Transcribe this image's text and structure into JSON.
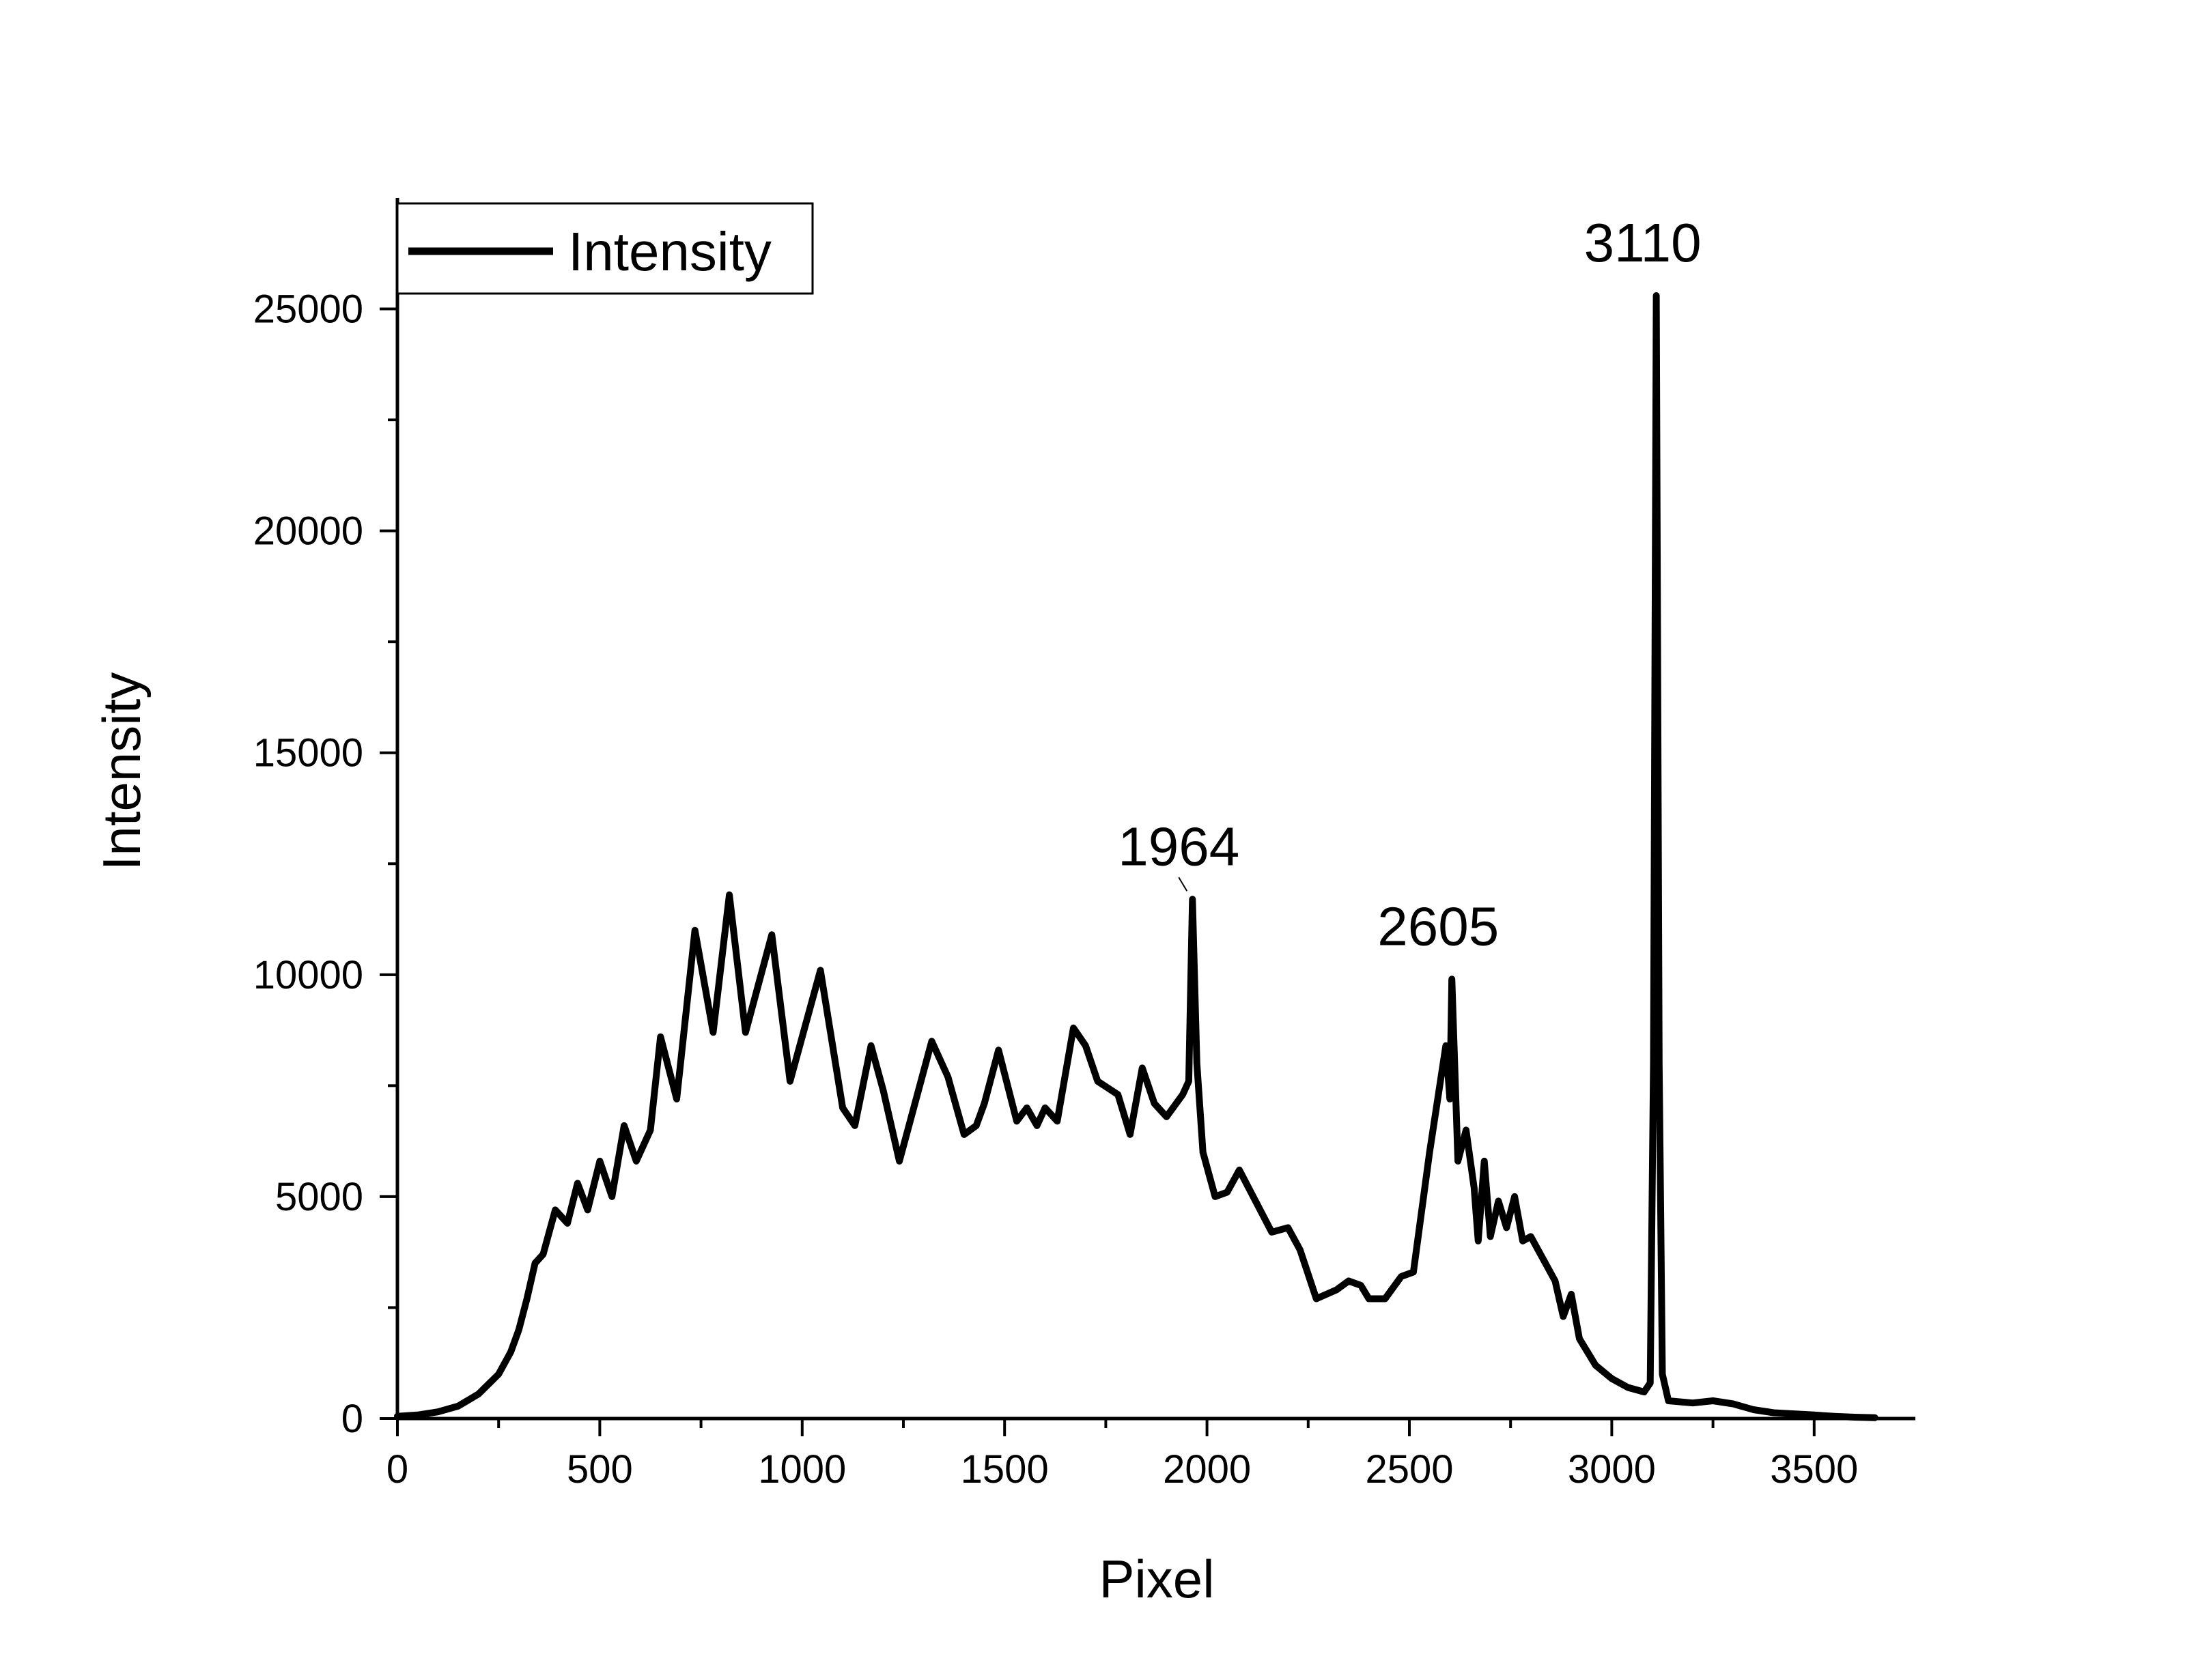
{
  "chart_data": {
    "type": "line",
    "title": "",
    "xlabel": "Pixel",
    "ylabel": "Intensity",
    "xlim": [
      0,
      3750
    ],
    "ylim": [
      0,
      27500
    ],
    "x_ticks": [
      0,
      500,
      1000,
      1500,
      2000,
      2500,
      3000,
      3500
    ],
    "y_ticks": [
      0,
      5000,
      10000,
      15000,
      20000,
      25000
    ],
    "x_tick_labels": [
      "0",
      "500",
      "1000",
      "1500",
      "2000",
      "2500",
      "3000",
      "3500"
    ],
    "y_tick_labels": [
      "0",
      "5000",
      "10000",
      "15000",
      "20000",
      "25000"
    ],
    "grid": false,
    "legend": {
      "position": "top-left",
      "entries": [
        "Intensity"
      ]
    },
    "line_color": "#000000",
    "series": [
      {
        "name": "Intensity",
        "points": [
          [
            0,
            50
          ],
          [
            50,
            80
          ],
          [
            100,
            150
          ],
          [
            150,
            280
          ],
          [
            200,
            550
          ],
          [
            250,
            1000
          ],
          [
            280,
            1500
          ],
          [
            300,
            2000
          ],
          [
            320,
            2700
          ],
          [
            340,
            3500
          ],
          [
            360,
            3700
          ],
          [
            390,
            4700
          ],
          [
            420,
            4400
          ],
          [
            445,
            5300
          ],
          [
            470,
            4700
          ],
          [
            500,
            5800
          ],
          [
            530,
            5000
          ],
          [
            560,
            6600
          ],
          [
            590,
            5800
          ],
          [
            625,
            6500
          ],
          [
            650,
            8600
          ],
          [
            690,
            7200
          ],
          [
            735,
            11000
          ],
          [
            780,
            8700
          ],
          [
            820,
            11800
          ],
          [
            860,
            8700
          ],
          [
            925,
            10900
          ],
          [
            970,
            7600
          ],
          [
            1045,
            10100
          ],
          [
            1100,
            7000
          ],
          [
            1130,
            6600
          ],
          [
            1170,
            8400
          ],
          [
            1200,
            7400
          ],
          [
            1240,
            5800
          ],
          [
            1320,
            8500
          ],
          [
            1360,
            7700
          ],
          [
            1400,
            6400
          ],
          [
            1430,
            6600
          ],
          [
            1450,
            7100
          ],
          [
            1485,
            8300
          ],
          [
            1530,
            6700
          ],
          [
            1555,
            7000
          ],
          [
            1580,
            6600
          ],
          [
            1600,
            7000
          ],
          [
            1630,
            6700
          ],
          [
            1670,
            8800
          ],
          [
            1700,
            8400
          ],
          [
            1730,
            7600
          ],
          [
            1780,
            7300
          ],
          [
            1810,
            6400
          ],
          [
            1840,
            7900
          ],
          [
            1870,
            7100
          ],
          [
            1900,
            6800
          ],
          [
            1940,
            7300
          ],
          [
            1955,
            7600
          ],
          [
            1964,
            11700
          ],
          [
            1975,
            8000
          ],
          [
            1990,
            6000
          ],
          [
            2020,
            5000
          ],
          [
            2050,
            5100
          ],
          [
            2080,
            5600
          ],
          [
            2120,
            4900
          ],
          [
            2160,
            4200
          ],
          [
            2200,
            4300
          ],
          [
            2230,
            3800
          ],
          [
            2270,
            2700
          ],
          [
            2320,
            2900
          ],
          [
            2350,
            3100
          ],
          [
            2380,
            3000
          ],
          [
            2400,
            2700
          ],
          [
            2440,
            2700
          ],
          [
            2480,
            3200
          ],
          [
            2510,
            3300
          ],
          [
            2550,
            6000
          ],
          [
            2570,
            7200
          ],
          [
            2590,
            8400
          ],
          [
            2600,
            7200
          ],
          [
            2605,
            9900
          ],
          [
            2620,
            5800
          ],
          [
            2640,
            6500
          ],
          [
            2660,
            5200
          ],
          [
            2670,
            4000
          ],
          [
            2685,
            5800
          ],
          [
            2700,
            4100
          ],
          [
            2720,
            4900
          ],
          [
            2740,
            4300
          ],
          [
            2760,
            5000
          ],
          [
            2780,
            4000
          ],
          [
            2800,
            4100
          ],
          [
            2830,
            3600
          ],
          [
            2860,
            3100
          ],
          [
            2880,
            2300
          ],
          [
            2900,
            2800
          ],
          [
            2920,
            1800
          ],
          [
            2960,
            1200
          ],
          [
            3000,
            900
          ],
          [
            3040,
            700
          ],
          [
            3080,
            600
          ],
          [
            3095,
            800
          ],
          [
            3103,
            8000
          ],
          [
            3110,
            25300
          ],
          [
            3117,
            8000
          ],
          [
            3125,
            1000
          ],
          [
            3140,
            400
          ],
          [
            3200,
            350
          ],
          [
            3250,
            400
          ],
          [
            3300,
            330
          ],
          [
            3350,
            200
          ],
          [
            3400,
            130
          ],
          [
            3500,
            80
          ],
          [
            3550,
            50
          ],
          [
            3600,
            30
          ],
          [
            3650,
            20
          ]
        ]
      }
    ],
    "annotations": [
      {
        "text": "1964",
        "x": 1964,
        "y": 11700
      },
      {
        "text": "2605",
        "x": 2605,
        "y": 9900
      },
      {
        "text": "3110",
        "x": 3110,
        "y": 25300
      }
    ]
  }
}
